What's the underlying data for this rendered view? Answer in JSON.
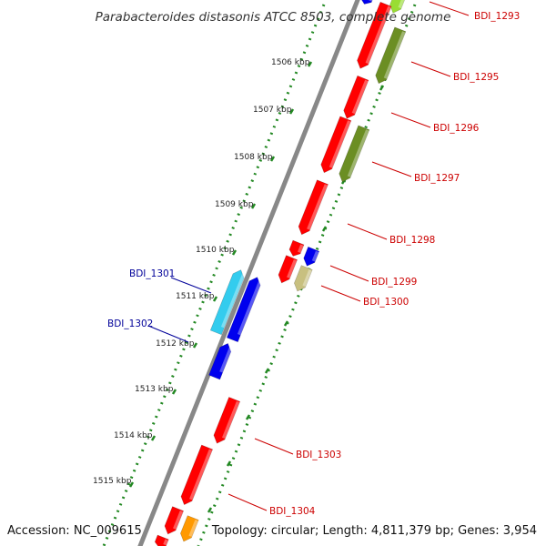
{
  "title": "Parabacteroides distasonis ATCC 8503, complete genome",
  "footer": {
    "accession": "Accession: NC_009615",
    "summary": "Topology: circular; Length: 4,811,379 bp; Genes: 3,954"
  },
  "kbp_ticks": [
    "1506 kbp",
    "1507 kbp",
    "1508 kbp",
    "1509 kbp",
    "1510 kbp",
    "1511 kbp",
    "1512 kbp",
    "1513 kbp",
    "1514 kbp",
    "1515 kbp"
  ],
  "gene_labels": {
    "forward": [
      "BDI_1293",
      "BDI_1295",
      "BDI_1296",
      "BDI_1297",
      "BDI_1298",
      "BDI_1299",
      "BDI_1300",
      "BDI_1303",
      "BDI_1304"
    ],
    "reverse": [
      "BDI_1301",
      "BDI_1302"
    ]
  },
  "colors": {
    "forward_label": "#cc0000",
    "reverse_label": "#000099",
    "red_gene": "#ff0000",
    "blue_gene": "#0000ee",
    "cyan_gene": "#33ccee",
    "olive_gene": "#6b8e23",
    "khaki_gene": "#c8c080",
    "orange_gene": "#ff9900",
    "lightgreen_gene": "#99dd33",
    "backbone": "#888888",
    "dots": "#228822",
    "ticks": "#228822"
  }
}
